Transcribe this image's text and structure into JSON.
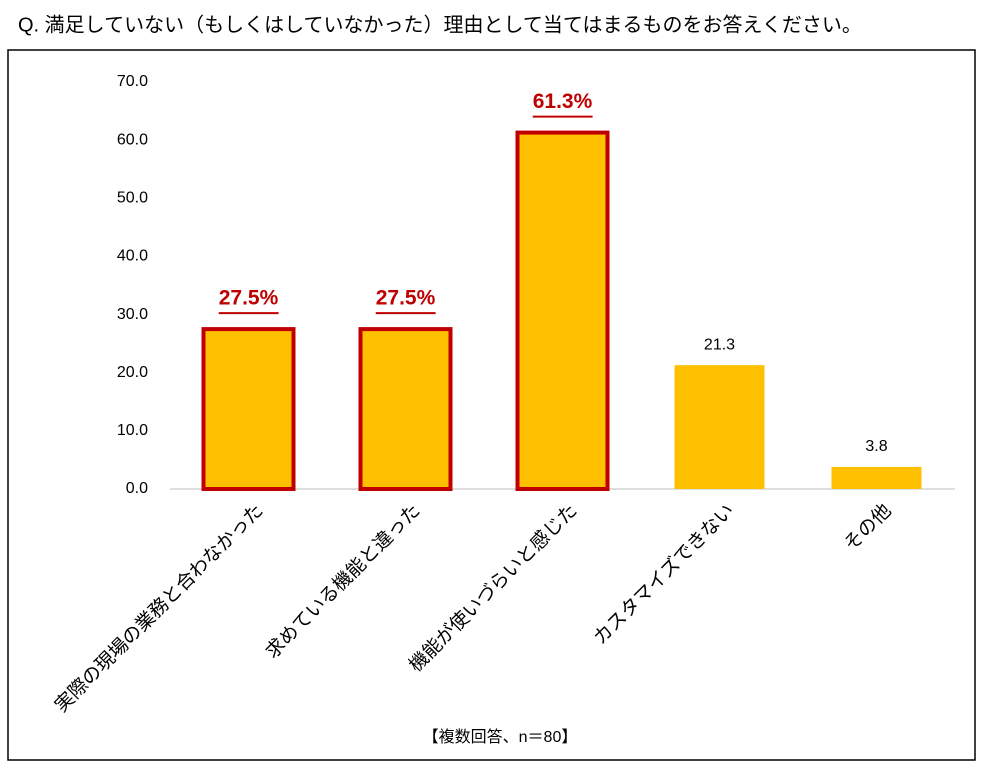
{
  "chart_data": {
    "type": "bar",
    "title": "Q. 満足していない（もしくはしていなかった）理由として当てはまるものをお答えください。",
    "footnote": "【複数回答、n＝80】",
    "categories": [
      "実際の現場の業務と合わなかった",
      "求めている機能と違った",
      "機能が使いづらいと感じた",
      "カスタマイズできない",
      "その他"
    ],
    "values": [
      27.5,
      27.5,
      61.3,
      21.3,
      3.8
    ],
    "value_labels": [
      "27.5%",
      "27.5%",
      "61.3%",
      "21.3",
      "3.8"
    ],
    "highlighted": [
      true,
      true,
      true,
      false,
      false
    ],
    "color": "#ffc000",
    "highlight_color": "#c00000",
    "ylim": [
      0,
      70
    ],
    "yticks": [
      {
        "value": 0,
        "label": "0.0"
      },
      {
        "value": 10,
        "label": "10.0"
      },
      {
        "value": 20,
        "label": "20.0"
      },
      {
        "value": 30,
        "label": "30.0"
      },
      {
        "value": 40,
        "label": "40.0"
      },
      {
        "value": 50,
        "label": "50.0"
      },
      {
        "value": 60,
        "label": "60.0"
      },
      {
        "value": 70,
        "label": "70.0"
      }
    ],
    "grid": false
  }
}
